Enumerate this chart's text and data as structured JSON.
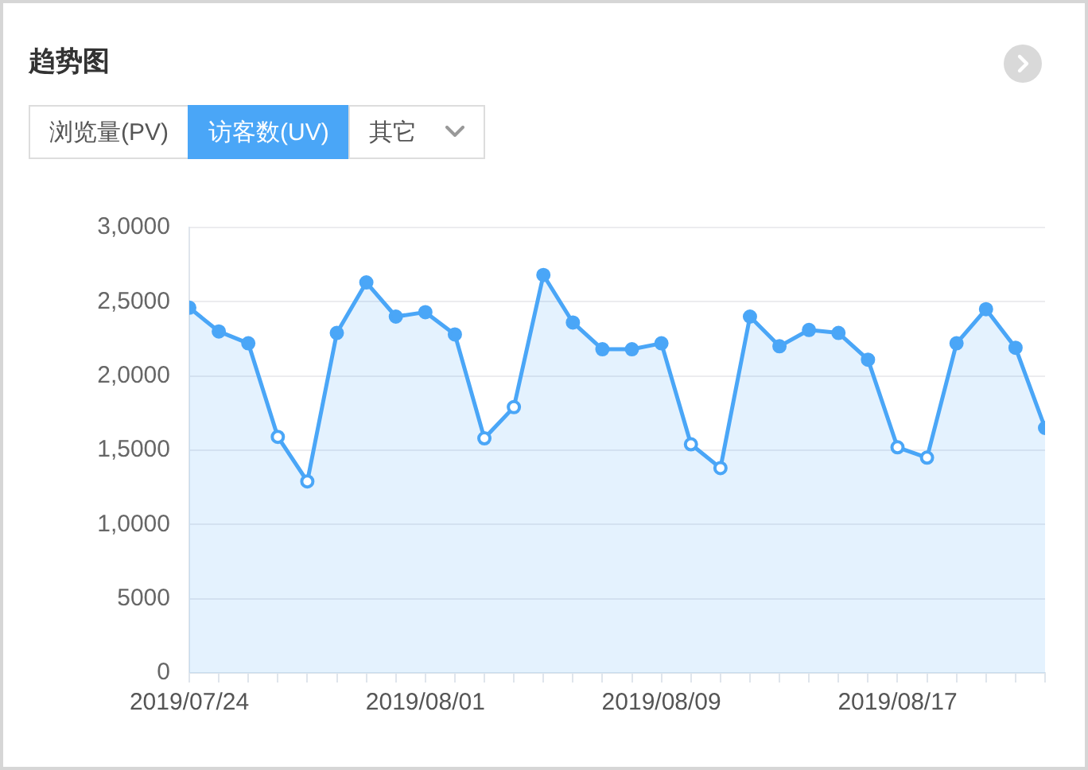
{
  "chart_data": {
    "type": "area",
    "title": "趋势图",
    "x": [
      "2019-07-24",
      "2019-07-25",
      "2019-07-26",
      "2019-07-27",
      "2019-07-28",
      "2019-07-29",
      "2019-07-30",
      "2019-07-31",
      "2019-08-01",
      "2019-08-02",
      "2019-08-03",
      "2019-08-04",
      "2019-08-05",
      "2019-08-06",
      "2019-08-07",
      "2019-08-08",
      "2019-08-09",
      "2019-08-10",
      "2019-08-11",
      "2019-08-12",
      "2019-08-13",
      "2019-08-14",
      "2019-08-15",
      "2019-08-16",
      "2019-08-17",
      "2019-08-18",
      "2019-08-19",
      "2019-08-20",
      "2019-08-21",
      "2019-08-22"
    ],
    "series": [
      {
        "name": "访客数(UV)",
        "color": "#4aa6f7",
        "values": [
          24600,
          23000,
          22200,
          15900,
          12900,
          22900,
          26300,
          24000,
          24300,
          22800,
          15800,
          17900,
          26800,
          23600,
          21800,
          21800,
          22200,
          15400,
          13800,
          24000,
          22000,
          23100,
          22900,
          21100,
          15200,
          14500,
          22200,
          24500,
          21900,
          16500
        ]
      }
    ],
    "xlim": [
      "2019-07-24",
      "2019-08-22"
    ],
    "xticks": [
      {
        "value": "2019-07-24",
        "label": "2019/07/24"
      },
      {
        "value": "2019-07-25",
        "label": null
      },
      {
        "value": "2019-07-26",
        "label": null
      },
      {
        "value": "2019-07-27",
        "label": null
      },
      {
        "value": "2019-07-28",
        "label": null
      },
      {
        "value": "2019-07-29",
        "label": null
      },
      {
        "value": "2019-07-30",
        "label": null
      },
      {
        "value": "2019-07-31",
        "label": null
      },
      {
        "value": "2019-08-01",
        "label": "2019/08/01"
      },
      {
        "value": "2019-08-02",
        "label": null
      },
      {
        "value": "2019-08-03",
        "label": null
      },
      {
        "value": "2019-08-04",
        "label": null
      },
      {
        "value": "2019-08-05",
        "label": null
      },
      {
        "value": "2019-08-06",
        "label": null
      },
      {
        "value": "2019-08-07",
        "label": null
      },
      {
        "value": "2019-08-08",
        "label": null
      },
      {
        "value": "2019-08-09",
        "label": "2019/08/09"
      },
      {
        "value": "2019-08-10",
        "label": null
      },
      {
        "value": "2019-08-11",
        "label": null
      },
      {
        "value": "2019-08-12",
        "label": null
      },
      {
        "value": "2019-08-13",
        "label": null
      },
      {
        "value": "2019-08-14",
        "label": null
      },
      {
        "value": "2019-08-15",
        "label": null
      },
      {
        "value": "2019-08-16",
        "label": null
      },
      {
        "value": "2019-08-17",
        "label": "2019/08/17"
      },
      {
        "value": "2019-08-18",
        "label": null
      },
      {
        "value": "2019-08-19",
        "label": null
      },
      {
        "value": "2019-08-20",
        "label": null
      },
      {
        "value": "2019-08-21",
        "label": null
      },
      {
        "value": "2019-08-22",
        "label": null
      }
    ],
    "ylim": [
      0,
      30000
    ],
    "yticks": [
      0,
      5000,
      {
        "value": 10000,
        "label": "1,0000"
      },
      {
        "value": 15000,
        "label": "1,5000"
      },
      {
        "value": 20000,
        "label": "2,0000"
      },
      {
        "value": 25000,
        "label": "2,5000"
      },
      {
        "value": 30000,
        "label": "3,0000"
      }
    ],
    "grid": "y",
    "legend": "top left",
    "marker": "circle",
    "annotations": [
      "浏览量(PV)",
      "其它"
    ]
  }
}
